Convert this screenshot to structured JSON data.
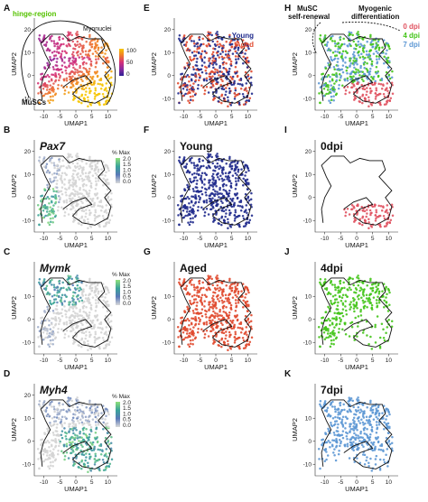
{
  "figure": {
    "axis_x_label": "UMAP1",
    "axis_y_label": "UMAP2",
    "legend_title": "% Max"
  },
  "chart_data": [
    {
      "id": "A",
      "type": "scatter",
      "letter": "A",
      "title": "",
      "xlim": [
        -13,
        13
      ],
      "ylim": [
        -15,
        25
      ],
      "xticks": [
        -10,
        -5,
        0,
        5,
        10
      ],
      "yticks": [
        -10,
        0,
        10,
        20
      ],
      "color_mode": "pseudotime",
      "colorbar": {
        "ticks": [
          100,
          50,
          0
        ],
        "colors": [
          "#f6c500",
          "#f07b2a",
          "#d4307a",
          "#8a2a9f",
          "#2d1f94"
        ]
      },
      "annotations": [
        "hinge-region",
        "Myonuclei",
        "MuSCs"
      ],
      "annotation_colors": [
        "#55c200",
        "#111111",
        "#111111"
      ]
    },
    {
      "id": "B",
      "type": "scatter",
      "letter": "B",
      "title": "Pax7",
      "title_italic": true,
      "xlim": [
        -13,
        13
      ],
      "ylim": [
        -15,
        25
      ],
      "xticks": [
        -10,
        -5,
        0,
        5,
        10
      ],
      "yticks": [
        -10,
        0,
        10,
        20
      ],
      "color_mode": "gene",
      "gene_high": "left",
      "legend": {
        "title": "% Max",
        "ticks": [
          "2.0",
          "1.5",
          "1.0",
          "0.5",
          "0.0"
        ]
      }
    },
    {
      "id": "C",
      "type": "scatter",
      "letter": "C",
      "title": "Mymk",
      "title_italic": true,
      "xlim": [
        -13,
        13
      ],
      "ylim": [
        -15,
        25
      ],
      "xticks": [
        -10,
        -5,
        0,
        5,
        10
      ],
      "yticks": [
        -10,
        0,
        10
      ],
      "color_mode": "gene",
      "gene_high": "upper",
      "legend": {
        "title": "% Max",
        "ticks": [
          "2.0",
          "1.5",
          "1.0",
          "0.5",
          "0.0"
        ]
      }
    },
    {
      "id": "D",
      "type": "scatter",
      "letter": "D",
      "title": "Myh4",
      "title_italic": true,
      "xlim": [
        -13,
        13
      ],
      "ylim": [
        -15,
        25
      ],
      "xticks": [
        -10,
        -5,
        0,
        5,
        10
      ],
      "yticks": [
        -10,
        0,
        10,
        20
      ],
      "color_mode": "gene",
      "gene_high": "right",
      "legend": {
        "title": "% Max",
        "ticks": [
          "2.0",
          "1.5",
          "1.0",
          "0.5",
          "0.0"
        ]
      }
    },
    {
      "id": "E",
      "type": "scatter",
      "letter": "E",
      "title": "",
      "xlim": [
        -13,
        13
      ],
      "ylim": [
        -15,
        25
      ],
      "xticks": [
        -10,
        -5,
        0,
        5,
        10
      ],
      "yticks": [
        -10,
        0,
        10,
        20
      ],
      "color_mode": "age_mix",
      "series": [
        {
          "name": "Young",
          "color": "#1f2a8c"
        },
        {
          "name": "Aged",
          "color": "#e0492e"
        }
      ]
    },
    {
      "id": "F",
      "type": "scatter",
      "letter": "F",
      "title": "Young",
      "title_italic": false,
      "xlim": [
        -13,
        13
      ],
      "ylim": [
        -15,
        25
      ],
      "xticks": [
        -10,
        -5,
        0,
        5,
        10
      ],
      "yticks": [
        -10,
        0,
        10,
        20
      ],
      "color_mode": "single",
      "color": "#1f2a8c"
    },
    {
      "id": "G",
      "type": "scatter",
      "letter": "G",
      "title": "Aged",
      "title_italic": false,
      "xlim": [
        -13,
        13
      ],
      "ylim": [
        -15,
        25
      ],
      "xticks": [
        -10,
        -5,
        0,
        5,
        10
      ],
      "yticks": [
        -10,
        0,
        10
      ],
      "color_mode": "single",
      "color": "#e0492e"
    },
    {
      "id": "H",
      "type": "scatter",
      "letter": "H",
      "title": "",
      "xlim": [
        -13,
        13
      ],
      "ylim": [
        -15,
        25
      ],
      "xticks": [
        -10,
        -5,
        0,
        5,
        10
      ],
      "yticks": [
        -10,
        0,
        10,
        20
      ],
      "color_mode": "dpi_mix",
      "series": [
        {
          "name": "0 dpi",
          "color": "#e05260"
        },
        {
          "name": "4 dpi",
          "color": "#43c418"
        },
        {
          "name": "7 dpi",
          "color": "#5c97d4"
        }
      ],
      "annotations": [
        "MuSC",
        "self-renewal",
        "Myogenic",
        "differentiation"
      ]
    },
    {
      "id": "I",
      "type": "scatter",
      "letter": "I",
      "title": "0dpi",
      "title_italic": false,
      "xlim": [
        -13,
        13
      ],
      "ylim": [
        -15,
        25
      ],
      "xticks": [
        -10,
        -5,
        0,
        5,
        10
      ],
      "yticks": [
        -10,
        0,
        10,
        20
      ],
      "color_mode": "region",
      "region": "bottom",
      "color": "#e05260"
    },
    {
      "id": "J",
      "type": "scatter",
      "letter": "J",
      "title": "4dpi",
      "title_italic": false,
      "xlim": [
        -13,
        13
      ],
      "ylim": [
        -15,
        25
      ],
      "xticks": [
        -10,
        -5,
        0,
        5,
        10
      ],
      "yticks": [
        -10,
        0,
        10
      ],
      "color_mode": "region",
      "region": "mid",
      "color": "#43c418"
    },
    {
      "id": "K",
      "type": "scatter",
      "letter": "K",
      "title": "7dpi",
      "title_italic": false,
      "xlim": [
        -13,
        13
      ],
      "ylim": [
        -15,
        25
      ],
      "xticks": [
        -10,
        -5,
        0,
        5,
        10
      ],
      "yticks": [
        -10,
        0,
        10
      ],
      "color_mode": "region",
      "region": "top",
      "color": "#5c97d4"
    }
  ]
}
